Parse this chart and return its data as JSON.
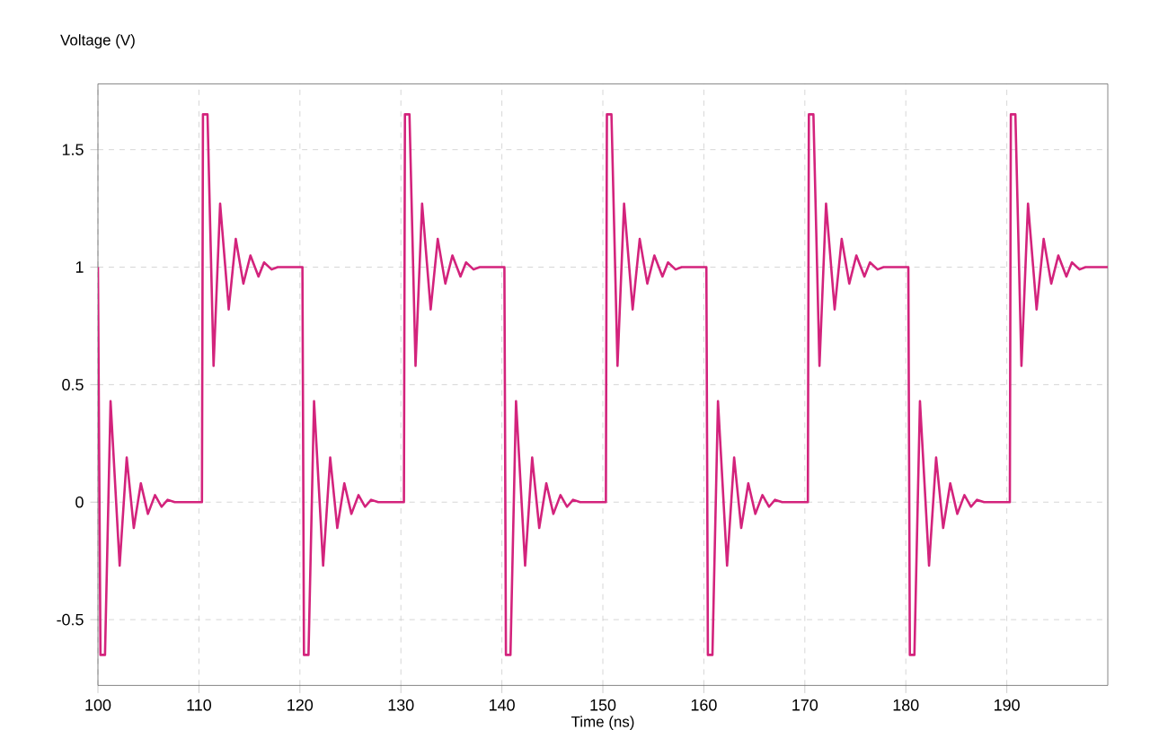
{
  "chart_data": {
    "type": "line",
    "xlabel": "Time (ns)",
    "ylabel": "Voltage (V)",
    "color": "#d3237c",
    "grid": true,
    "xlim": [
      100,
      200
    ],
    "ylim": [
      -0.78,
      1.78
    ],
    "xticks": [
      100,
      110,
      120,
      130,
      140,
      150,
      160,
      170,
      180,
      190
    ],
    "yticks": [
      -0.5,
      0,
      0.5,
      1,
      1.5
    ],
    "x": [
      100,
      100.25,
      100.7,
      101.25,
      102.15,
      102.85,
      103.55,
      104.25,
      104.95,
      105.65,
      106.3,
      106.9,
      107.6,
      110.3,
      110.4,
      110.85,
      111.45,
      112.1,
      112.95,
      113.65,
      114.4,
      115.1,
      115.9,
      116.45,
      117.2,
      117.8,
      120.25,
      120.4,
      120.85,
      121.4,
      122.3,
      123.0,
      123.7,
      124.4,
      125.1,
      125.8,
      126.45,
      127.05,
      127.75,
      130.3,
      130.4,
      130.85,
      131.45,
      132.1,
      132.95,
      133.65,
      134.4,
      135.1,
      135.9,
      136.45,
      137.2,
      137.8,
      140.25,
      140.4,
      140.85,
      141.4,
      142.3,
      143.0,
      143.7,
      144.4,
      145.1,
      145.8,
      146.45,
      147.05,
      147.75,
      150.3,
      150.4,
      150.85,
      151.45,
      152.1,
      152.95,
      153.65,
      154.4,
      155.1,
      155.9,
      156.45,
      157.2,
      157.8,
      160.25,
      160.4,
      160.85,
      161.4,
      162.3,
      163.0,
      163.7,
      164.4,
      165.1,
      165.8,
      166.45,
      167.05,
      167.75,
      170.3,
      170.4,
      170.85,
      171.45,
      172.1,
      172.95,
      173.65,
      174.4,
      175.1,
      175.9,
      176.45,
      177.2,
      177.8,
      180.25,
      180.4,
      180.85,
      181.4,
      182.3,
      183.0,
      183.7,
      184.4,
      185.1,
      185.8,
      186.45,
      187.05,
      187.75,
      190.3,
      190.4,
      190.85,
      191.45,
      192.1,
      192.95,
      193.65,
      194.4,
      195.1,
      195.9,
      196.45,
      197.2,
      197.8,
      200
    ],
    "values": [
      1.0,
      -0.65,
      -0.65,
      0.43,
      -0.27,
      0.19,
      -0.11,
      0.08,
      -0.05,
      0.03,
      -0.02,
      0.01,
      0,
      0,
      1.65,
      1.65,
      0.58,
      1.27,
      0.82,
      1.12,
      0.93,
      1.05,
      0.96,
      1.02,
      0.99,
      1.0,
      1.0,
      -0.65,
      -0.65,
      0.43,
      -0.27,
      0.19,
      -0.11,
      0.08,
      -0.05,
      0.03,
      -0.02,
      0.01,
      0,
      0,
      1.65,
      1.65,
      0.58,
      1.27,
      0.82,
      1.12,
      0.93,
      1.05,
      0.96,
      1.02,
      0.99,
      1.0,
      1.0,
      -0.65,
      -0.65,
      0.43,
      -0.27,
      0.19,
      -0.11,
      0.08,
      -0.05,
      0.03,
      -0.02,
      0.01,
      0,
      0,
      1.65,
      1.65,
      0.58,
      1.27,
      0.82,
      1.12,
      0.93,
      1.05,
      0.96,
      1.02,
      0.99,
      1.0,
      1.0,
      -0.65,
      -0.65,
      0.43,
      -0.27,
      0.19,
      -0.11,
      0.08,
      -0.05,
      0.03,
      -0.02,
      0.01,
      0,
      0,
      1.65,
      1.65,
      0.58,
      1.27,
      0.82,
      1.12,
      0.93,
      1.05,
      0.96,
      1.02,
      0.99,
      1.0,
      1.0,
      -0.65,
      -0.65,
      0.43,
      -0.27,
      0.19,
      -0.11,
      0.08,
      -0.05,
      0.03,
      -0.02,
      0.01,
      0,
      0,
      1.65,
      1.65,
      0.58,
      1.27,
      0.82,
      1.12,
      0.93,
      1.05,
      0.96,
      1.02,
      0.99,
      1.0,
      1.0
    ]
  }
}
